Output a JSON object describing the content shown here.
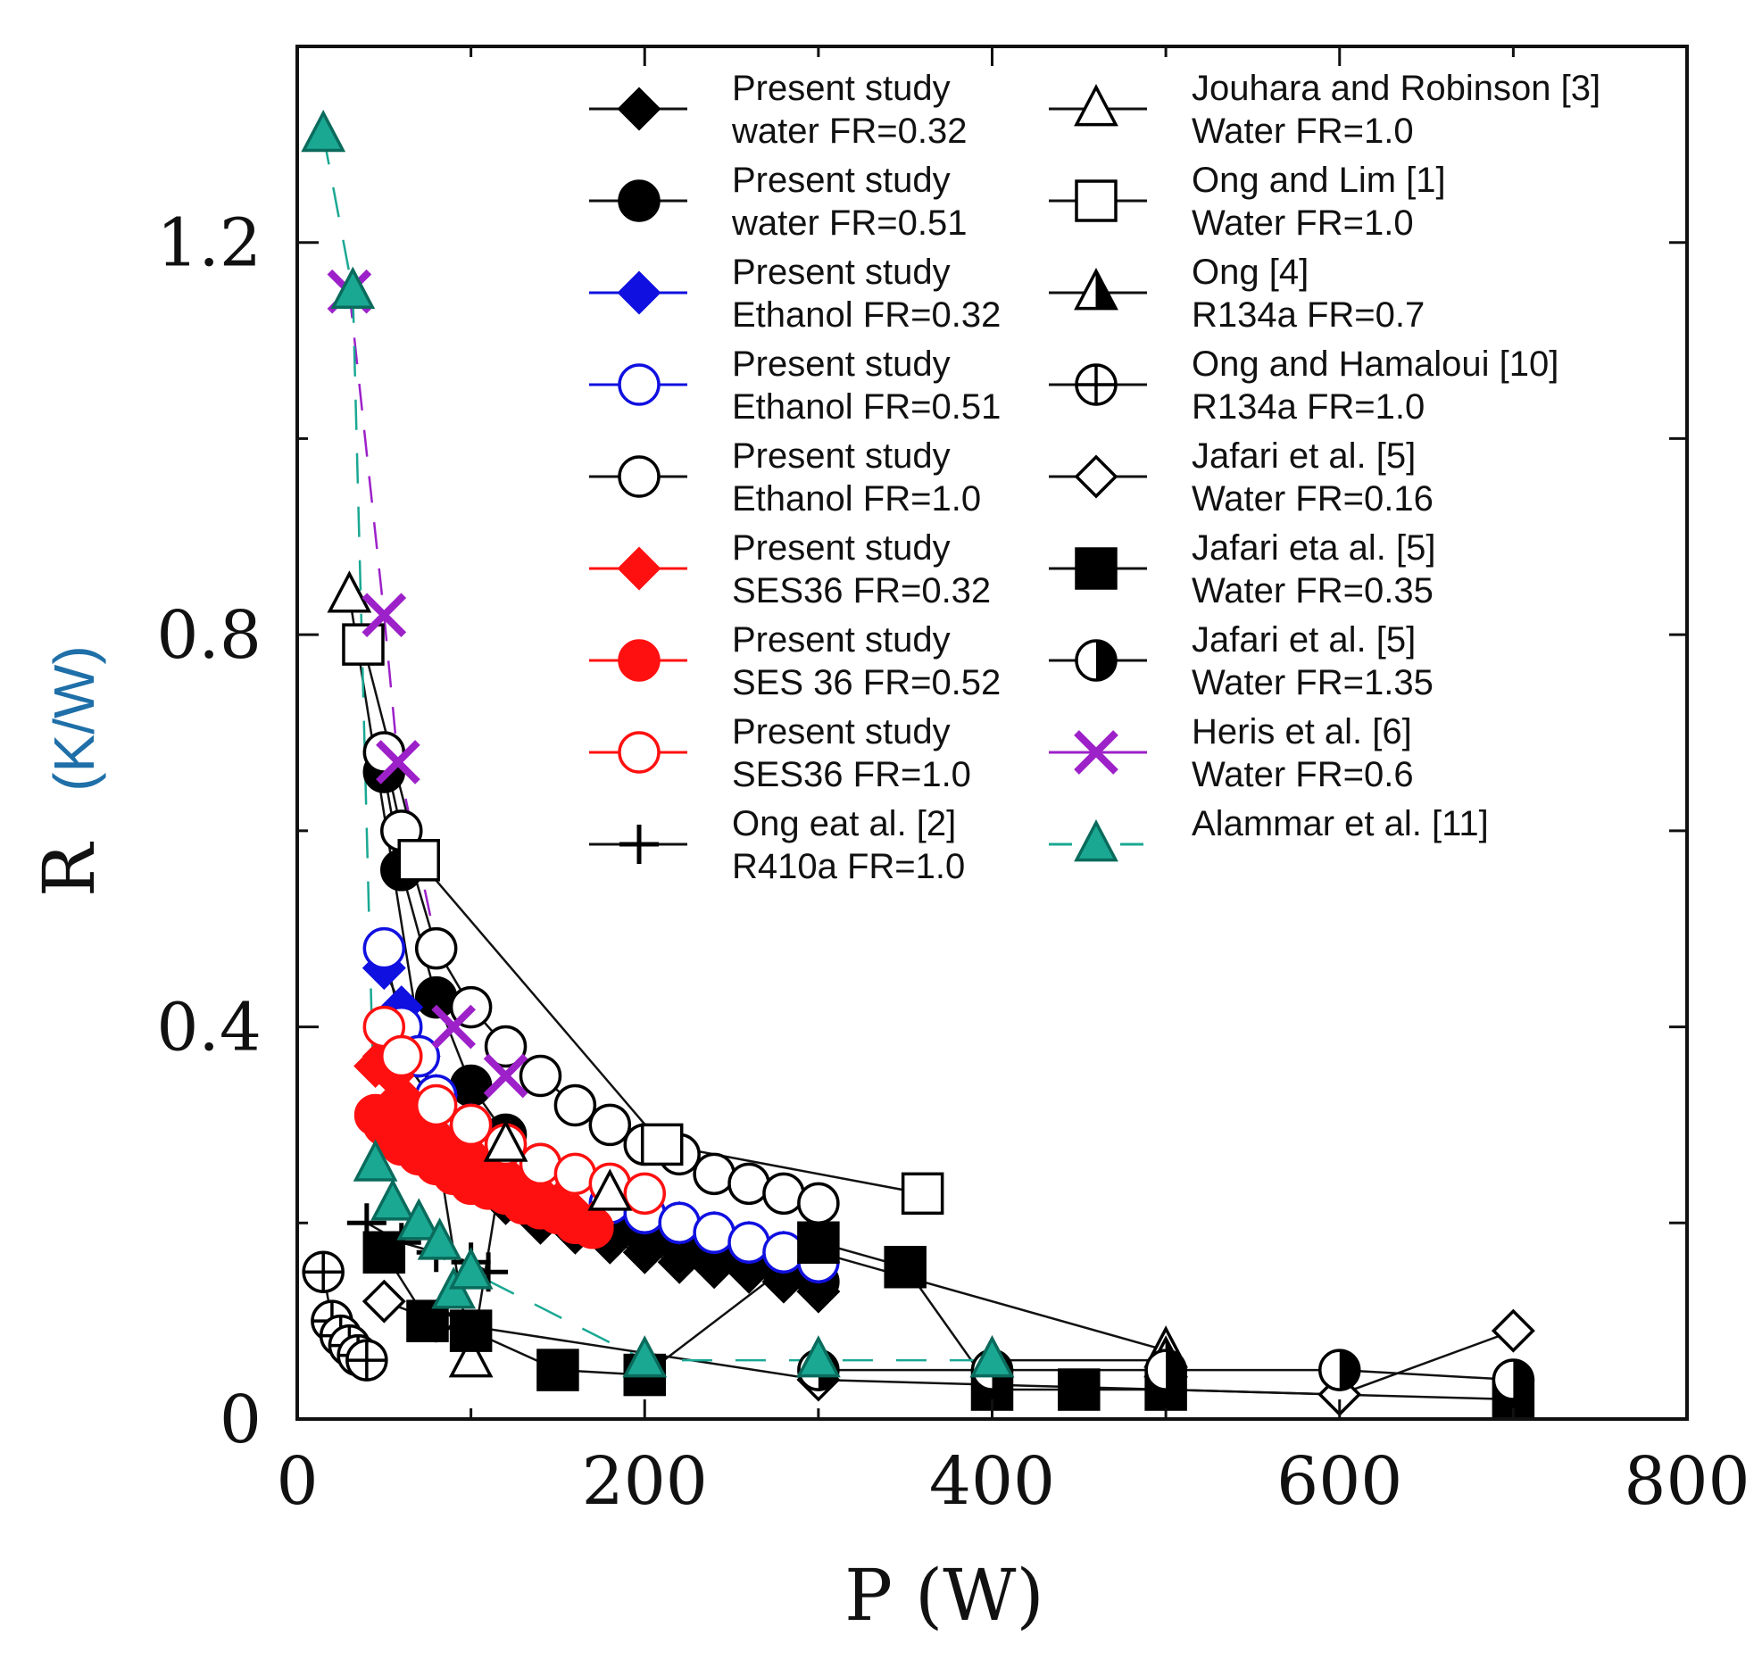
{
  "chart_data": {
    "type": "scatter",
    "title": "",
    "xlabel": "P",
    "xunit": "(W)",
    "ylabel": "R",
    "yunit": "(K/W)",
    "xlim": [
      0,
      800
    ],
    "ylim": [
      0,
      1.4
    ],
    "x_ticks": [
      "0",
      "200",
      "400",
      "600",
      "800"
    ],
    "y_ticks": [
      "0",
      "0.4",
      "0.8",
      "1.2"
    ],
    "x_tick_values": [
      0,
      200,
      400,
      600,
      800
    ],
    "y_tick_values": [
      0,
      0.4,
      0.8,
      1.2
    ],
    "grid": false,
    "legend_position": "top-right",
    "colors": {
      "axis": "#111111",
      "unit_label": "#8a4a00",
      "ylabel_unit": "#1f6fa8",
      "blue": "#1010e0",
      "red": "#ff1010",
      "purple": "#9d21c9",
      "teal": "#1aa893"
    },
    "series": [
      {
        "name": "Present study water FR=0.32",
        "legend_lines": [
          "Present study",
          " water FR=0.32"
        ],
        "marker": "diamond-filled",
        "color": "#000000",
        "x": [
          110,
          120,
          140,
          160,
          180,
          200,
          220,
          240,
          260,
          280,
          300
        ],
        "y": [
          0.24,
          0.22,
          0.2,
          0.19,
          0.18,
          0.17,
          0.16,
          0.155,
          0.15,
          0.14,
          0.13
        ]
      },
      {
        "name": "Present study water FR=0.51",
        "legend_lines": [
          "Present study",
          "water FR=0.51"
        ],
        "marker": "circle-filled",
        "color": "#000000",
        "x": [
          50,
          60,
          80,
          100,
          120,
          140,
          160,
          180,
          200,
          220,
          240,
          260,
          280,
          300
        ],
        "y": [
          0.66,
          0.56,
          0.43,
          0.34,
          0.29,
          0.26,
          0.23,
          0.2,
          0.19,
          0.18,
          0.17,
          0.16,
          0.15,
          0.14
        ]
      },
      {
        "name": "Present study Ethanol FR=0.32",
        "legend_lines": [
          "Present study",
          "Ethanol FR=0.32"
        ],
        "marker": "diamond-filled",
        "color": "#1010e0",
        "x": [
          50,
          60,
          70,
          80,
          100,
          120,
          140,
          160,
          180,
          200,
          220,
          240,
          260,
          280,
          300
        ],
        "y": [
          0.46,
          0.42,
          0.37,
          0.33,
          0.3,
          0.27,
          0.25,
          0.23,
          0.22,
          0.21,
          0.2,
          0.19,
          0.18,
          0.17,
          0.16
        ]
      },
      {
        "name": "Present study Ethanol FR=0.51",
        "legend_lines": [
          "Present study",
          "Ethanol FR=0.51"
        ],
        "marker": "circle-open",
        "color": "#1010e0",
        "x": [
          50,
          60,
          70,
          80,
          100,
          120,
          140,
          160,
          180,
          200,
          220,
          240,
          260,
          280,
          300
        ],
        "y": [
          0.48,
          0.4,
          0.37,
          0.33,
          0.3,
          0.27,
          0.25,
          0.23,
          0.22,
          0.21,
          0.2,
          0.19,
          0.18,
          0.17,
          0.16
        ]
      },
      {
        "name": "Present study Ethanol FR=1.0",
        "legend_lines": [
          "Present study",
          " Ethanol FR=1.0"
        ],
        "marker": "circle-open",
        "color": "#000000",
        "x": [
          50,
          60,
          80,
          100,
          120,
          140,
          160,
          180,
          200,
          220,
          240,
          260,
          280,
          300
        ],
        "y": [
          0.68,
          0.6,
          0.48,
          0.42,
          0.38,
          0.35,
          0.32,
          0.3,
          0.28,
          0.27,
          0.25,
          0.24,
          0.23,
          0.22
        ]
      },
      {
        "name": "Present study SES36 FR=0.32",
        "legend_lines": [
          "Present study",
          "SES36 FR=0.32"
        ],
        "marker": "diamond-filled",
        "color": "#ff1010",
        "x": [
          45,
          50,
          55,
          60,
          70,
          80,
          90,
          100,
          110,
          120,
          130,
          140,
          150,
          160,
          170
        ],
        "y": [
          0.36,
          0.37,
          0.35,
          0.33,
          0.31,
          0.29,
          0.28,
          0.27,
          0.26,
          0.25,
          0.24,
          0.23,
          0.22,
          0.21,
          0.2
        ]
      },
      {
        "name": "Present study SES 36 FR=0.52",
        "legend_lines": [
          "Present study",
          " SES 36 FR=0.52"
        ],
        "marker": "circle-filled",
        "color": "#ff1010",
        "x": [
          45,
          50,
          55,
          60,
          70,
          80,
          90,
          100,
          110,
          120,
          130,
          140,
          150,
          160,
          170
        ],
        "y": [
          0.31,
          0.3,
          0.29,
          0.28,
          0.27,
          0.26,
          0.25,
          0.24,
          0.235,
          0.23,
          0.22,
          0.215,
          0.21,
          0.2,
          0.195
        ]
      },
      {
        "name": "Present study SES36 FR=1.0",
        "legend_lines": [
          "Present study",
          " SES36 FR=1.0"
        ],
        "marker": "circle-open",
        "color": "#ff1010",
        "x": [
          50,
          60,
          80,
          100,
          120,
          140,
          160,
          180,
          200
        ],
        "y": [
          0.4,
          0.37,
          0.32,
          0.3,
          0.28,
          0.26,
          0.25,
          0.24,
          0.23
        ]
      },
      {
        "name": "Ong eat al. [2] R410a FR=1.0",
        "legend_lines": [
          "Ong eat al. [2]",
          " R410a FR=1.0"
        ],
        "marker": "plus",
        "color": "#000000",
        "x": [
          40,
          60,
          80,
          100,
          110
        ],
        "y": [
          0.2,
          0.18,
          0.17,
          0.16,
          0.15
        ]
      },
      {
        "name": "Jouhara and Robinson [3] Water FR=1.0",
        "legend_lines": [
          "Jouhara and Robinson [3]",
          " Water FR=1.0"
        ],
        "marker": "triangle-open",
        "color": "#000000",
        "x": [
          30,
          100,
          120,
          180,
          500
        ],
        "y": [
          0.84,
          0.06,
          0.28,
          0.23,
          0.07
        ]
      },
      {
        "name": "Ong and Lim [1] Water FR=1.0",
        "legend_lines": [
          "Ong and Lim [1]",
          " Water FR=1.0"
        ],
        "marker": "square-open",
        "color": "#000000",
        "x": [
          38,
          70,
          210,
          360
        ],
        "y": [
          0.79,
          0.57,
          0.28,
          0.23
        ]
      },
      {
        "name": "Ong [4] R134a FR=0.7",
        "legend_lines": [
          "Ong [4]",
          "R134a FR=0.7"
        ],
        "marker": "triangle-half",
        "color": "#000000",
        "x": [
          400,
          500
        ],
        "y": [
          0.06,
          0.06
        ]
      },
      {
        "name": "Ong and Hamaloui [10] R134a FR=1.0",
        "legend_lines": [
          "Ong and Hamaloui [10]",
          " R134a FR=1.0"
        ],
        "marker": "circle-cross",
        "color": "#000000",
        "x": [
          15,
          20,
          25,
          30,
          35,
          40
        ],
        "y": [
          0.15,
          0.1,
          0.085,
          0.075,
          0.065,
          0.06
        ]
      },
      {
        "name": "Jafari et al. [5] Water FR=0.16",
        "legend_lines": [
          "Jafari et al. [5]",
          " Water FR=0.16"
        ],
        "marker": "diamond-open",
        "color": "#000000",
        "x": [
          50,
          80,
          300,
          600,
          700
        ],
        "y": [
          0.12,
          0.1,
          0.04,
          0.025,
          0.09
        ]
      },
      {
        "name": "Jafari eta al. [5] Water FR=0.35",
        "legend_lines": [
          "Jafari eta al. [5]",
          "Water FR=0.35"
        ],
        "marker": "square-filled",
        "color": "#000000",
        "x": [
          50,
          75,
          100,
          150,
          200,
          300,
          350,
          400,
          450,
          500,
          700
        ],
        "y": [
          0.17,
          0.1,
          0.09,
          0.05,
          0.045,
          0.18,
          0.155,
          0.03,
          0.03,
          0.03,
          0.02
        ]
      },
      {
        "name": "Jafari et al. [5] Water FR=1.35",
        "legend_lines": [
          "Jafari et al. [5]",
          "Water FR=1.35"
        ],
        "marker": "circle-half",
        "color": "#000000",
        "x": [
          300,
          400,
          500,
          600,
          700
        ],
        "y": [
          0.05,
          0.05,
          0.05,
          0.05,
          0.04
        ]
      },
      {
        "name": "Heris et al. [6] Water FR=0.6",
        "legend_lines": [
          "Heris et al. [6]",
          "Water FR=0.6"
        ],
        "marker": "x",
        "color": "#9d21c9",
        "x": [
          30,
          50,
          58,
          90,
          120
        ],
        "y": [
          1.15,
          0.82,
          0.67,
          0.4,
          0.35
        ]
      },
      {
        "name": "Alammar et al. [11]",
        "legend_lines": [
          "Alammar et al. [11]"
        ],
        "marker": "triangle-filled",
        "color": "#1aa893",
        "x": [
          15,
          32,
          45,
          55,
          70,
          82,
          90,
          100,
          200,
          300,
          400
        ],
        "y": [
          1.31,
          1.15,
          0.26,
          0.22,
          0.2,
          0.18,
          0.13,
          0.15,
          0.06,
          0.06,
          0.06
        ]
      }
    ]
  }
}
